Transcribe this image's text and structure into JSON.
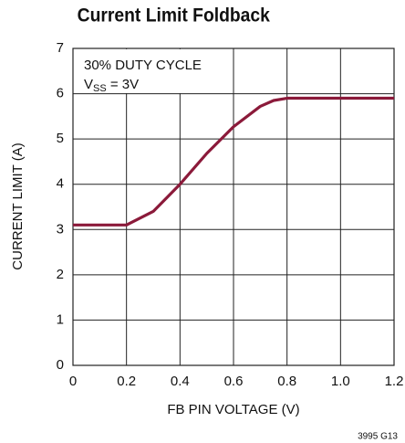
{
  "chart_data": {
    "type": "line",
    "title": "Current Limit Foldback",
    "x_label": "FB PIN VOLTAGE (V)",
    "y_label": "CURRENT LIMIT (A)",
    "annotation": "30% DUTY CYCLE",
    "condition": {
      "main": "V",
      "sub": "SS",
      "rest": " = 3V"
    },
    "footnote": "3995 G13",
    "x": [
      0,
      0.2,
      0.3,
      0.4,
      0.5,
      0.6,
      0.7,
      0.75,
      0.8,
      1.2
    ],
    "series": [
      {
        "name": "Current Limit",
        "color": "#8b1a3a",
        "values": [
          3.1,
          3.1,
          3.4,
          4.0,
          4.68,
          5.27,
          5.72,
          5.85,
          5.9,
          5.9
        ]
      }
    ],
    "xlim": [
      0,
      1.2
    ],
    "xticks": [
      0,
      0.2,
      0.4,
      0.6,
      0.8,
      {
        "value": 1,
        "label": "1.0"
      },
      1.2
    ],
    "ylim": [
      0,
      7
    ],
    "yticks": [
      0,
      1,
      2,
      3,
      4,
      5,
      6,
      7
    ],
    "grid": true
  }
}
